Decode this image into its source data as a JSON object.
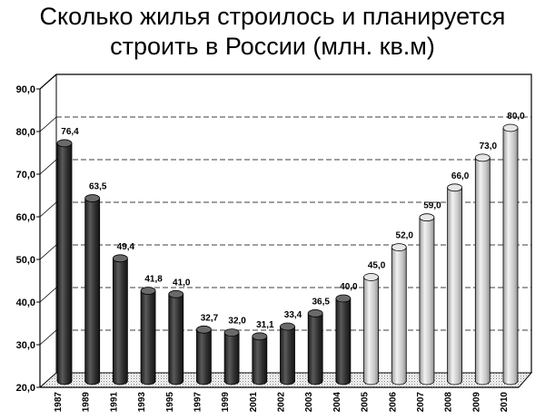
{
  "chart_data": {
    "type": "bar",
    "title_line1": "Сколько жилья строилось и планируется",
    "title_line2": "строить в России (млн. кв.м)",
    "xlabel": "",
    "ylabel": "",
    "ylim": [
      20,
      90
    ],
    "yticks": [
      20,
      30,
      40,
      50,
      60,
      70,
      80,
      90
    ],
    "ytick_labels": [
      "20,0",
      "30,0",
      "40,0",
      "50,0",
      "60,0",
      "70,0",
      "80,0",
      "90,0"
    ],
    "categories": [
      "1987",
      "1989",
      "1991",
      "1993",
      "1995",
      "1997",
      "1999",
      "2001",
      "2002",
      "2003",
      "2004",
      "2005",
      "2006",
      "2007",
      "2008",
      "2009",
      "2010"
    ],
    "values": [
      76.4,
      63.5,
      49.4,
      41.8,
      41.0,
      32.7,
      32.0,
      31.1,
      33.4,
      36.5,
      40.0,
      45.0,
      52.0,
      59.0,
      66.0,
      73.0,
      80.0
    ],
    "value_labels": [
      "76,4",
      "63,5",
      "49,4",
      "41,8",
      "41,0",
      "32,7",
      "32,0",
      "31,1",
      "33,4",
      "36,5",
      "40,0",
      "45,0",
      "52,0",
      "59,0",
      "66,0",
      "73,0",
      "80,0"
    ],
    "bar_styles": [
      "actual",
      "actual",
      "actual",
      "actual",
      "actual",
      "actual",
      "actual",
      "actual",
      "actual",
      "actual",
      "actual",
      "planned",
      "planned",
      "planned",
      "planned",
      "planned",
      "planned"
    ],
    "grid": true,
    "colors": {
      "actual": "#3a3a3a",
      "planned": "#c8c8c8"
    }
  }
}
